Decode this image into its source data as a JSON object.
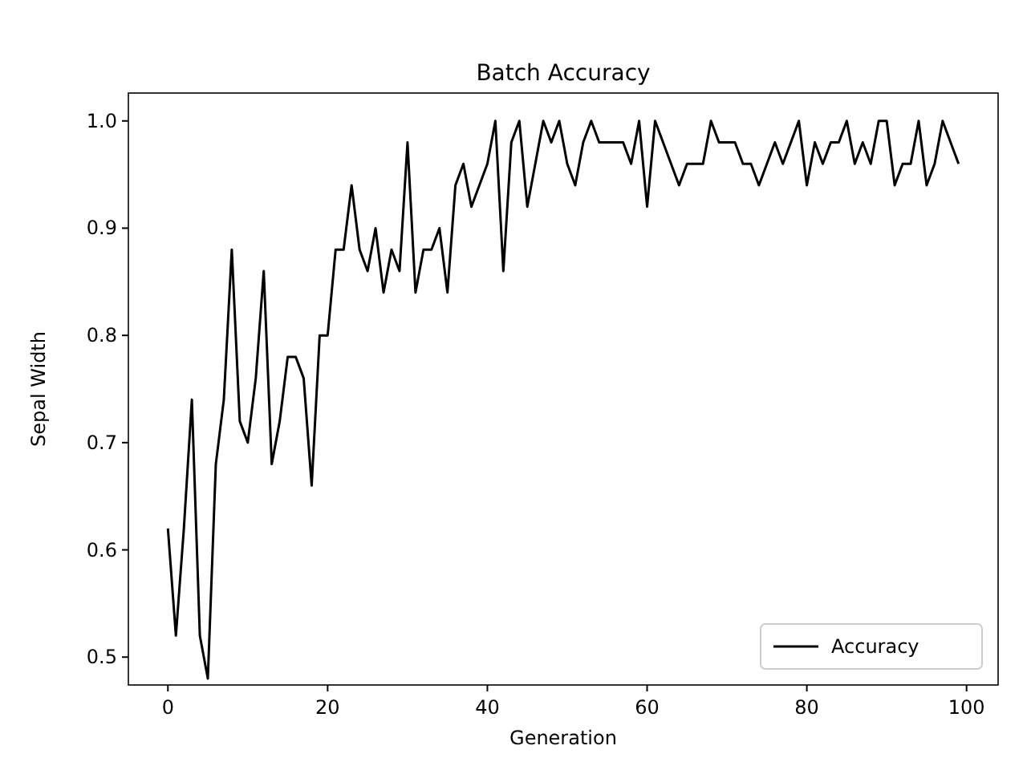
{
  "chart_data": {
    "type": "line",
    "title": "Batch Accuracy",
    "xlabel": "Generation",
    "ylabel": "Sepal Width",
    "x": [
      0,
      1,
      2,
      3,
      4,
      5,
      6,
      7,
      8,
      9,
      10,
      11,
      12,
      13,
      14,
      15,
      16,
      17,
      18,
      19,
      20,
      21,
      22,
      23,
      24,
      25,
      26,
      27,
      28,
      29,
      30,
      31,
      32,
      33,
      34,
      35,
      36,
      37,
      38,
      39,
      40,
      41,
      42,
      43,
      44,
      45,
      46,
      47,
      48,
      49,
      50,
      51,
      52,
      53,
      54,
      55,
      56,
      57,
      58,
      59,
      60,
      61,
      62,
      63,
      64,
      65,
      66,
      67,
      68,
      69,
      70,
      71,
      72,
      73,
      74,
      75,
      76,
      77,
      78,
      79,
      80,
      81,
      82,
      83,
      84,
      85,
      86,
      87,
      88,
      89,
      90,
      91,
      92,
      93,
      94,
      95,
      96,
      97,
      98,
      99
    ],
    "series": [
      {
        "name": "Accuracy",
        "color": "#000000",
        "values": [
          0.62,
          0.52,
          0.62,
          0.74,
          0.52,
          0.48,
          0.68,
          0.74,
          0.88,
          0.72,
          0.7,
          0.76,
          0.86,
          0.68,
          0.72,
          0.78,
          0.78,
          0.76,
          0.66,
          0.8,
          0.8,
          0.88,
          0.88,
          0.94,
          0.88,
          0.86,
          0.9,
          0.84,
          0.88,
          0.86,
          0.98,
          0.84,
          0.88,
          0.88,
          0.9,
          0.84,
          0.94,
          0.96,
          0.92,
          0.94,
          0.96,
          1.0,
          0.86,
          0.98,
          1.0,
          0.92,
          0.96,
          1.0,
          0.98,
          1.0,
          0.96,
          0.94,
          0.98,
          1.0,
          0.98,
          0.98,
          0.98,
          0.98,
          0.96,
          1.0,
          0.92,
          1.0,
          0.98,
          0.96,
          0.94,
          0.96,
          0.96,
          0.96,
          1.0,
          0.98,
          0.98,
          0.98,
          0.96,
          0.96,
          0.94,
          0.96,
          0.98,
          0.96,
          0.98,
          1.0,
          0.94,
          0.98,
          0.96,
          0.98,
          0.98,
          1.0,
          0.96,
          0.98,
          0.96,
          1.0,
          1.0,
          0.94,
          0.96,
          0.96,
          1.0,
          0.94,
          0.96,
          1.0,
          0.98,
          0.96
        ]
      }
    ],
    "xlim": [
      -4.95,
      103.95
    ],
    "xticks": [
      0,
      20,
      40,
      60,
      80,
      100
    ],
    "ylim": [
      0.474,
      1.026
    ],
    "yticks": [
      {
        "value": 0.5,
        "label": "0.5"
      },
      {
        "value": 0.6,
        "label": "0.6"
      },
      {
        "value": 0.7,
        "label": "0.7"
      },
      {
        "value": 0.8,
        "label": "0.8"
      },
      {
        "value": 0.9,
        "label": "0.9"
      },
      {
        "value": 1.0,
        "label": "1.0"
      }
    ],
    "legend": "bottom right",
    "grid": false,
    "line_style": "solid"
  }
}
